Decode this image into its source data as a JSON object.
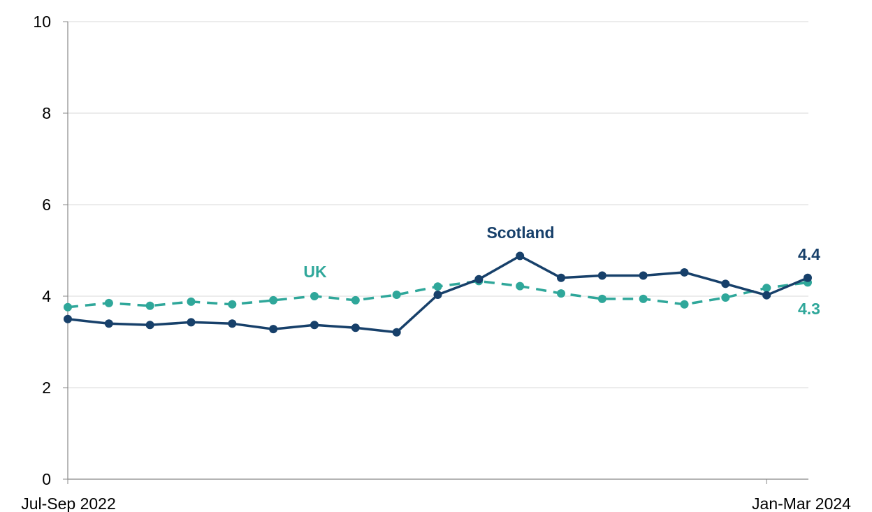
{
  "chart_data": {
    "type": "line",
    "title": "",
    "xlabel": "",
    "ylabel": "",
    "ylim": [
      0,
      10
    ],
    "yticks": [
      0,
      2,
      4,
      6,
      8,
      10
    ],
    "ytick_labels": [
      "0",
      "2",
      "4",
      "6",
      "8",
      "10"
    ],
    "grid": "horizontal",
    "x_tick_labels": [
      "Jul-Sep 2022",
      "Jan-Mar 2024"
    ],
    "point_count": 19,
    "series": [
      {
        "name": "Scotland",
        "color": "#17406a",
        "line_style": "solid",
        "values": [
          3.5,
          3.4,
          3.37,
          3.43,
          3.4,
          3.28,
          3.37,
          3.31,
          3.21,
          4.03,
          4.37,
          4.88,
          4.4,
          4.45,
          4.45,
          4.52,
          4.27,
          4.02,
          4.4
        ],
        "end_label": "4.4"
      },
      {
        "name": "UK",
        "color": "#2fa79a",
        "line_style": "dashed",
        "values": [
          3.76,
          3.85,
          3.79,
          3.88,
          3.82,
          3.91,
          4.0,
          3.91,
          4.03,
          4.21,
          4.33,
          4.22,
          4.06,
          3.94,
          3.94,
          3.82,
          3.97,
          4.18,
          4.3
        ],
        "end_label": "4.3"
      }
    ]
  }
}
